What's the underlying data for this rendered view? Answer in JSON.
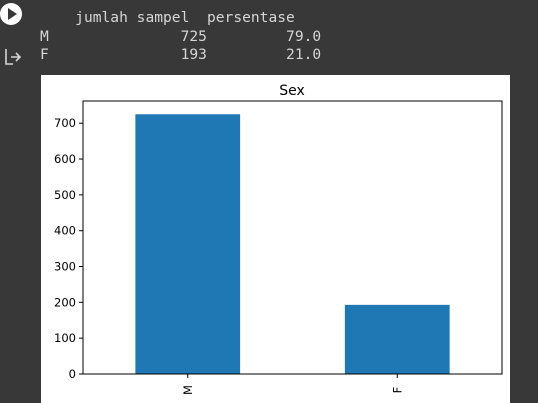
{
  "output": {
    "table": {
      "columns": [
        "jumlah sampel",
        "persentase"
      ],
      "rows": [
        {
          "index": "M",
          "jumlah_sampel": "725",
          "persentase": "79.0"
        },
        {
          "index": "F",
          "jumlah_sampel": "193",
          "persentase": "21.0"
        }
      ]
    }
  },
  "icons": {
    "run": "play-circle-icon",
    "output": "output-arrow-icon"
  },
  "chart_data": {
    "type": "bar",
    "title": "Sex",
    "categories": [
      "M",
      "F"
    ],
    "values": [
      725,
      193
    ],
    "xlabel": "",
    "ylabel": "",
    "ylim": [
      0,
      762
    ],
    "yticks": [
      0,
      100,
      200,
      300,
      400,
      500,
      600,
      700
    ],
    "bar_color": "#1f77b4",
    "grid": false,
    "legend": false
  }
}
